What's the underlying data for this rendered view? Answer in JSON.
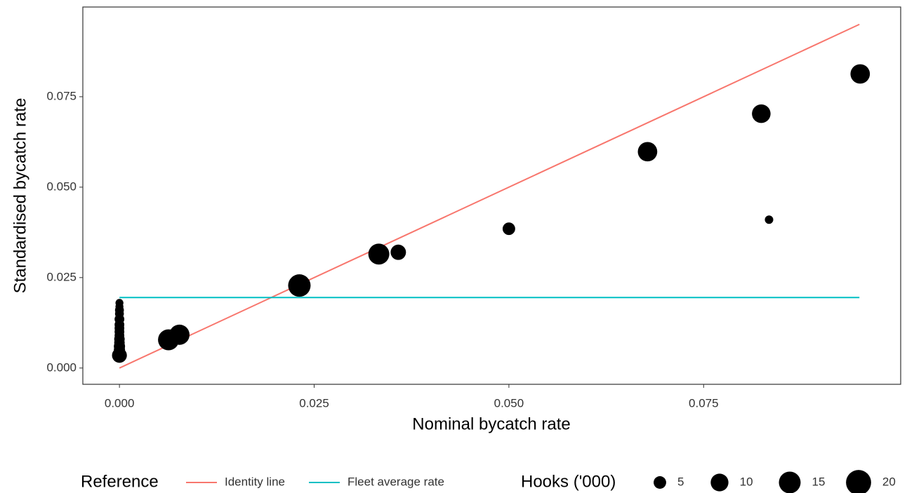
{
  "chart_data": {
    "type": "scatter",
    "xlabel": "Nominal bycatch rate",
    "ylabel": "Standardised bycatch rate",
    "xlim": [
      -0.0047,
      0.1003
    ],
    "ylim": [
      -0.0045,
      0.0998
    ],
    "xticks": [
      {
        "value": 0,
        "label": "0.000"
      },
      {
        "value": 0.025,
        "label": "0.025"
      },
      {
        "value": 0.05,
        "label": "0.050"
      },
      {
        "value": 0.075,
        "label": "0.075"
      }
    ],
    "yticks": [
      {
        "value": 0,
        "label": "0.000"
      },
      {
        "value": 0.025,
        "label": "0.025"
      },
      {
        "value": 0.05,
        "label": "0.050"
      },
      {
        "value": 0.075,
        "label": "0.075"
      }
    ],
    "points": {
      "color": "#000000",
      "x": [
        0,
        0,
        0,
        0,
        0,
        0,
        0,
        0,
        0,
        0,
        0,
        0,
        0,
        0,
        0.0063,
        0.0077,
        0.0231,
        0.0333,
        0.0358,
        0.05,
        0.0678,
        0.0824,
        0.0834,
        0.0951
      ],
      "y": [
        0.0035,
        0.005,
        0.006,
        0.007,
        0.008,
        0.009,
        0.01,
        0.011,
        0.012,
        0.0135,
        0.015,
        0.016,
        0.017,
        0.018,
        0.0078,
        0.0092,
        0.0228,
        0.0315,
        0.032,
        0.0385,
        0.0598,
        0.0703,
        0.041,
        0.0813
      ],
      "size": [
        7,
        4,
        4,
        3.5,
        3.5,
        3,
        3,
        3,
        3,
        3,
        2.5,
        2.5,
        2,
        2,
        14,
        13,
        16,
        14,
        7.5,
        5,
        12,
        11,
        2.25,
        12
      ]
    },
    "reference_legend_title": "Reference",
    "reference_lines": [
      {
        "name": "Identity line",
        "color": "#F8766D",
        "x": [
          0,
          0.095
        ],
        "y": [
          0,
          0.095
        ]
      },
      {
        "name": "Fleet average rate",
        "color": "#00BFC4",
        "x": [
          0,
          0.095
        ],
        "y": [
          0.0195,
          0.0195
        ]
      }
    ],
    "size_legend_title": "Hooks ('000)",
    "size_legend": [
      5,
      10,
      15,
      20
    ]
  }
}
